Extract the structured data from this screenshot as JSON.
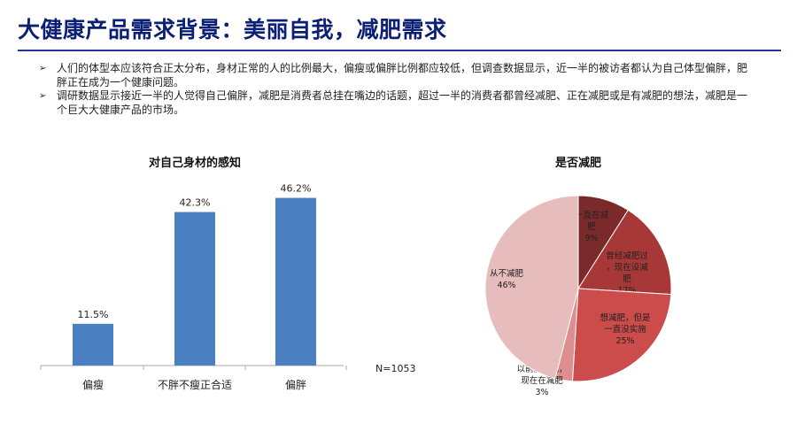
{
  "slide": {
    "title": "大健康产品需求背景：美丽自我，减肥需求",
    "bullets": [
      "人们的体型本应该符合正太分布，身材正常的人的比例最大，偏瘦或偏胖比例都应较低，但调查数据显示，近一半的被访者都认为自己体型偏胖，肥胖正在成为一个健康问题。",
      "调研数据显示接近一半的人觉得自己偏胖，减肥是消费者总挂在嘴边的话题，超过一半的消费者都曾经减肥、正在减肥或是有减肥的想法，减肥是一个巨大大健康产品的市场。"
    ],
    "bullet_marker": "➢"
  },
  "chart_data": [
    {
      "type": "bar",
      "title": "对自己身材的感知",
      "categories": [
        "偏瘦",
        "不胖不瘦正合适",
        "偏胖"
      ],
      "values": [
        11.5,
        42.3,
        46.2
      ],
      "value_labels": [
        "11.5%",
        "42.3%",
        "46.2%"
      ],
      "ylim": [
        0,
        50
      ],
      "note": "N=1053",
      "color": "#4a7fc1",
      "grid": false
    },
    {
      "type": "pie",
      "title": "是否减肥",
      "slices": [
        {
          "label": "一直在减肥",
          "value": 9,
          "pct": "9%",
          "color": "#7a2a2a"
        },
        {
          "label": "曾经减肥过，现在没减肥",
          "value": 17,
          "pct": "17%",
          "color": "#a83838"
        },
        {
          "label": "想减肥，但是一直没实施",
          "value": 25,
          "pct": "25%",
          "color": "#cc4b4b"
        },
        {
          "label": "以前没减肥，现在在减肥",
          "value": 3,
          "pct": "3%",
          "color": "#dd8f8f"
        },
        {
          "label": "从不减肥",
          "value": 46,
          "pct": "46%",
          "color": "#e6bcbc"
        }
      ]
    }
  ]
}
